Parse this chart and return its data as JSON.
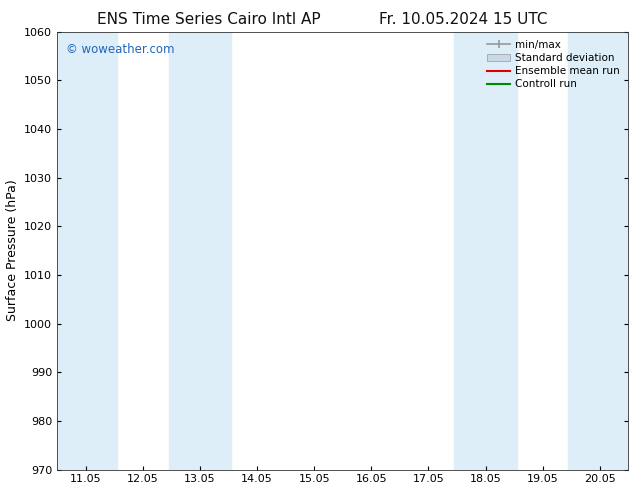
{
  "title_left": "ENS Time Series Cairo Intl AP",
  "title_right": "Fr. 10.05.2024 15 UTC",
  "ylabel": "Surface Pressure (hPa)",
  "ylim": [
    970,
    1060
  ],
  "yticks": [
    970,
    980,
    990,
    1000,
    1010,
    1020,
    1030,
    1040,
    1050,
    1060
  ],
  "xtick_labels": [
    "11.05",
    "12.05",
    "13.05",
    "14.05",
    "15.05",
    "16.05",
    "17.05",
    "18.05",
    "19.05",
    "20.05"
  ],
  "xtick_positions": [
    0,
    1,
    2,
    3,
    4,
    5,
    6,
    7,
    8,
    9
  ],
  "xlim": [
    -0.5,
    9.5
  ],
  "shaded_bands": [
    {
      "xstart": -0.5,
      "xend": 0.55,
      "color": "#ddeef8"
    },
    {
      "xstart": 1.45,
      "xend": 2.55,
      "color": "#ddeef8"
    },
    {
      "xstart": 6.45,
      "xend": 7.55,
      "color": "#ddeef8"
    },
    {
      "xstart": 8.45,
      "xend": 9.5,
      "color": "#ddeef8"
    }
  ],
  "watermark_text": "© woweather.com",
  "watermark_color": "#2266bb",
  "background_color": "#ffffff",
  "legend_entries": [
    {
      "label": "min/max",
      "color": "#999999",
      "style": "minmax"
    },
    {
      "label": "Standard deviation",
      "color": "#c8d8e8",
      "style": "stddev"
    },
    {
      "label": "Ensemble mean run",
      "color": "#dd0000",
      "style": "line"
    },
    {
      "label": "Controll run",
      "color": "#008800",
      "style": "line"
    }
  ],
  "title_fontsize": 11,
  "tick_fontsize": 8,
  "ylabel_fontsize": 9,
  "legend_fontsize": 7.5
}
